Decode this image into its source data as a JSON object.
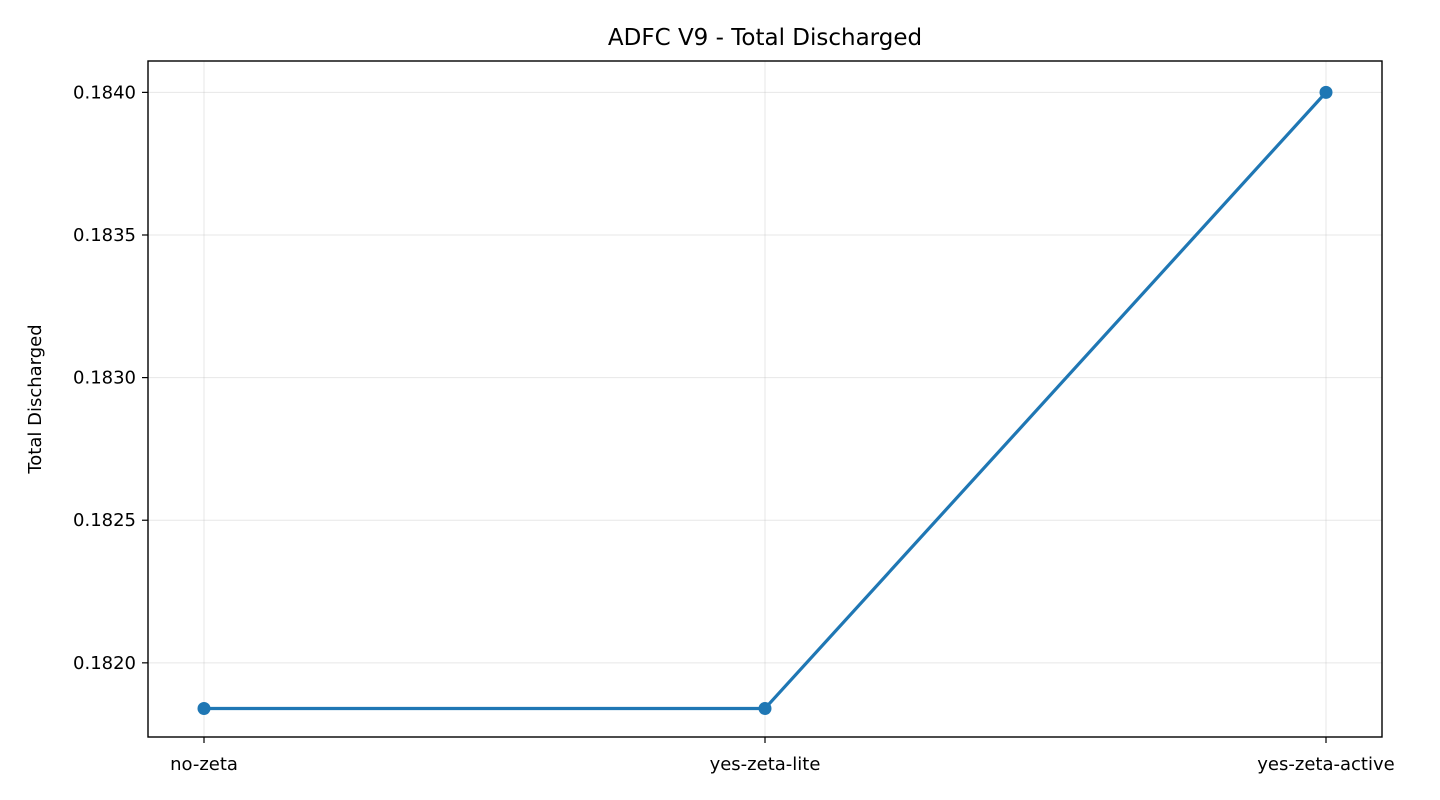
{
  "chart_data": {
    "type": "line",
    "title": "ADFC V9 - Total Discharged",
    "xlabel": "",
    "ylabel": "Total Discharged",
    "categories": [
      "no-zeta",
      "yes-zeta-lite",
      "yes-zeta-active"
    ],
    "series": [
      {
        "values": [
          0.18184,
          0.18184,
          0.184
        ],
        "color": "#1f77b4",
        "marker": "circle"
      }
    ],
    "y_ticks": [
      "0.1820",
      "0.1825",
      "0.1830",
      "0.1835",
      "0.1840"
    ],
    "ylim": [
      0.18174,
      0.18411
    ],
    "grid": true,
    "legend": "none"
  }
}
